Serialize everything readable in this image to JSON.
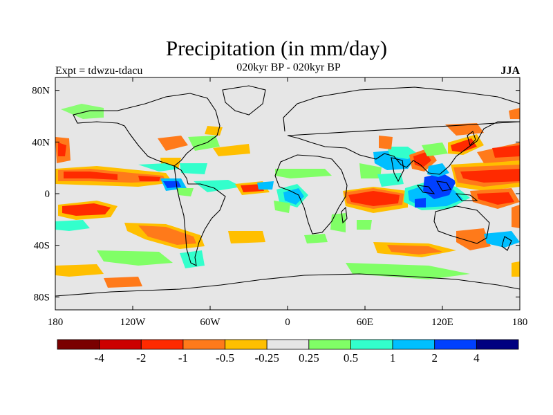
{
  "title": "Precipitation (in mm/day)",
  "subtitle": "020kyr BP - 020kyr BP",
  "experiment": "Expt = tdwzu-tdacu",
  "season": "JJA",
  "colors": {
    "background": "#e6e6e6",
    "coast": "#000000",
    "palette": [
      "#7a0000",
      "#cc0000",
      "#ff2a00",
      "#ff7a1a",
      "#ffbf00",
      "#e6e6e6",
      "#80ff66",
      "#33ffcc",
      "#00bfff",
      "#0040ff",
      "#000080"
    ]
  },
  "map": {
    "lon_ticks": [
      "180",
      "120W",
      "60W",
      "0",
      "60E",
      "120E",
      "180"
    ],
    "lat_ticks": [
      "80N",
      "40N",
      "0",
      "40S",
      "80S"
    ]
  },
  "colorbar": {
    "labels": [
      "-4",
      "-2",
      "-1",
      "-0.5",
      "-0.25",
      "0.25",
      "0.5",
      "1",
      "2",
      "4"
    ]
  }
}
